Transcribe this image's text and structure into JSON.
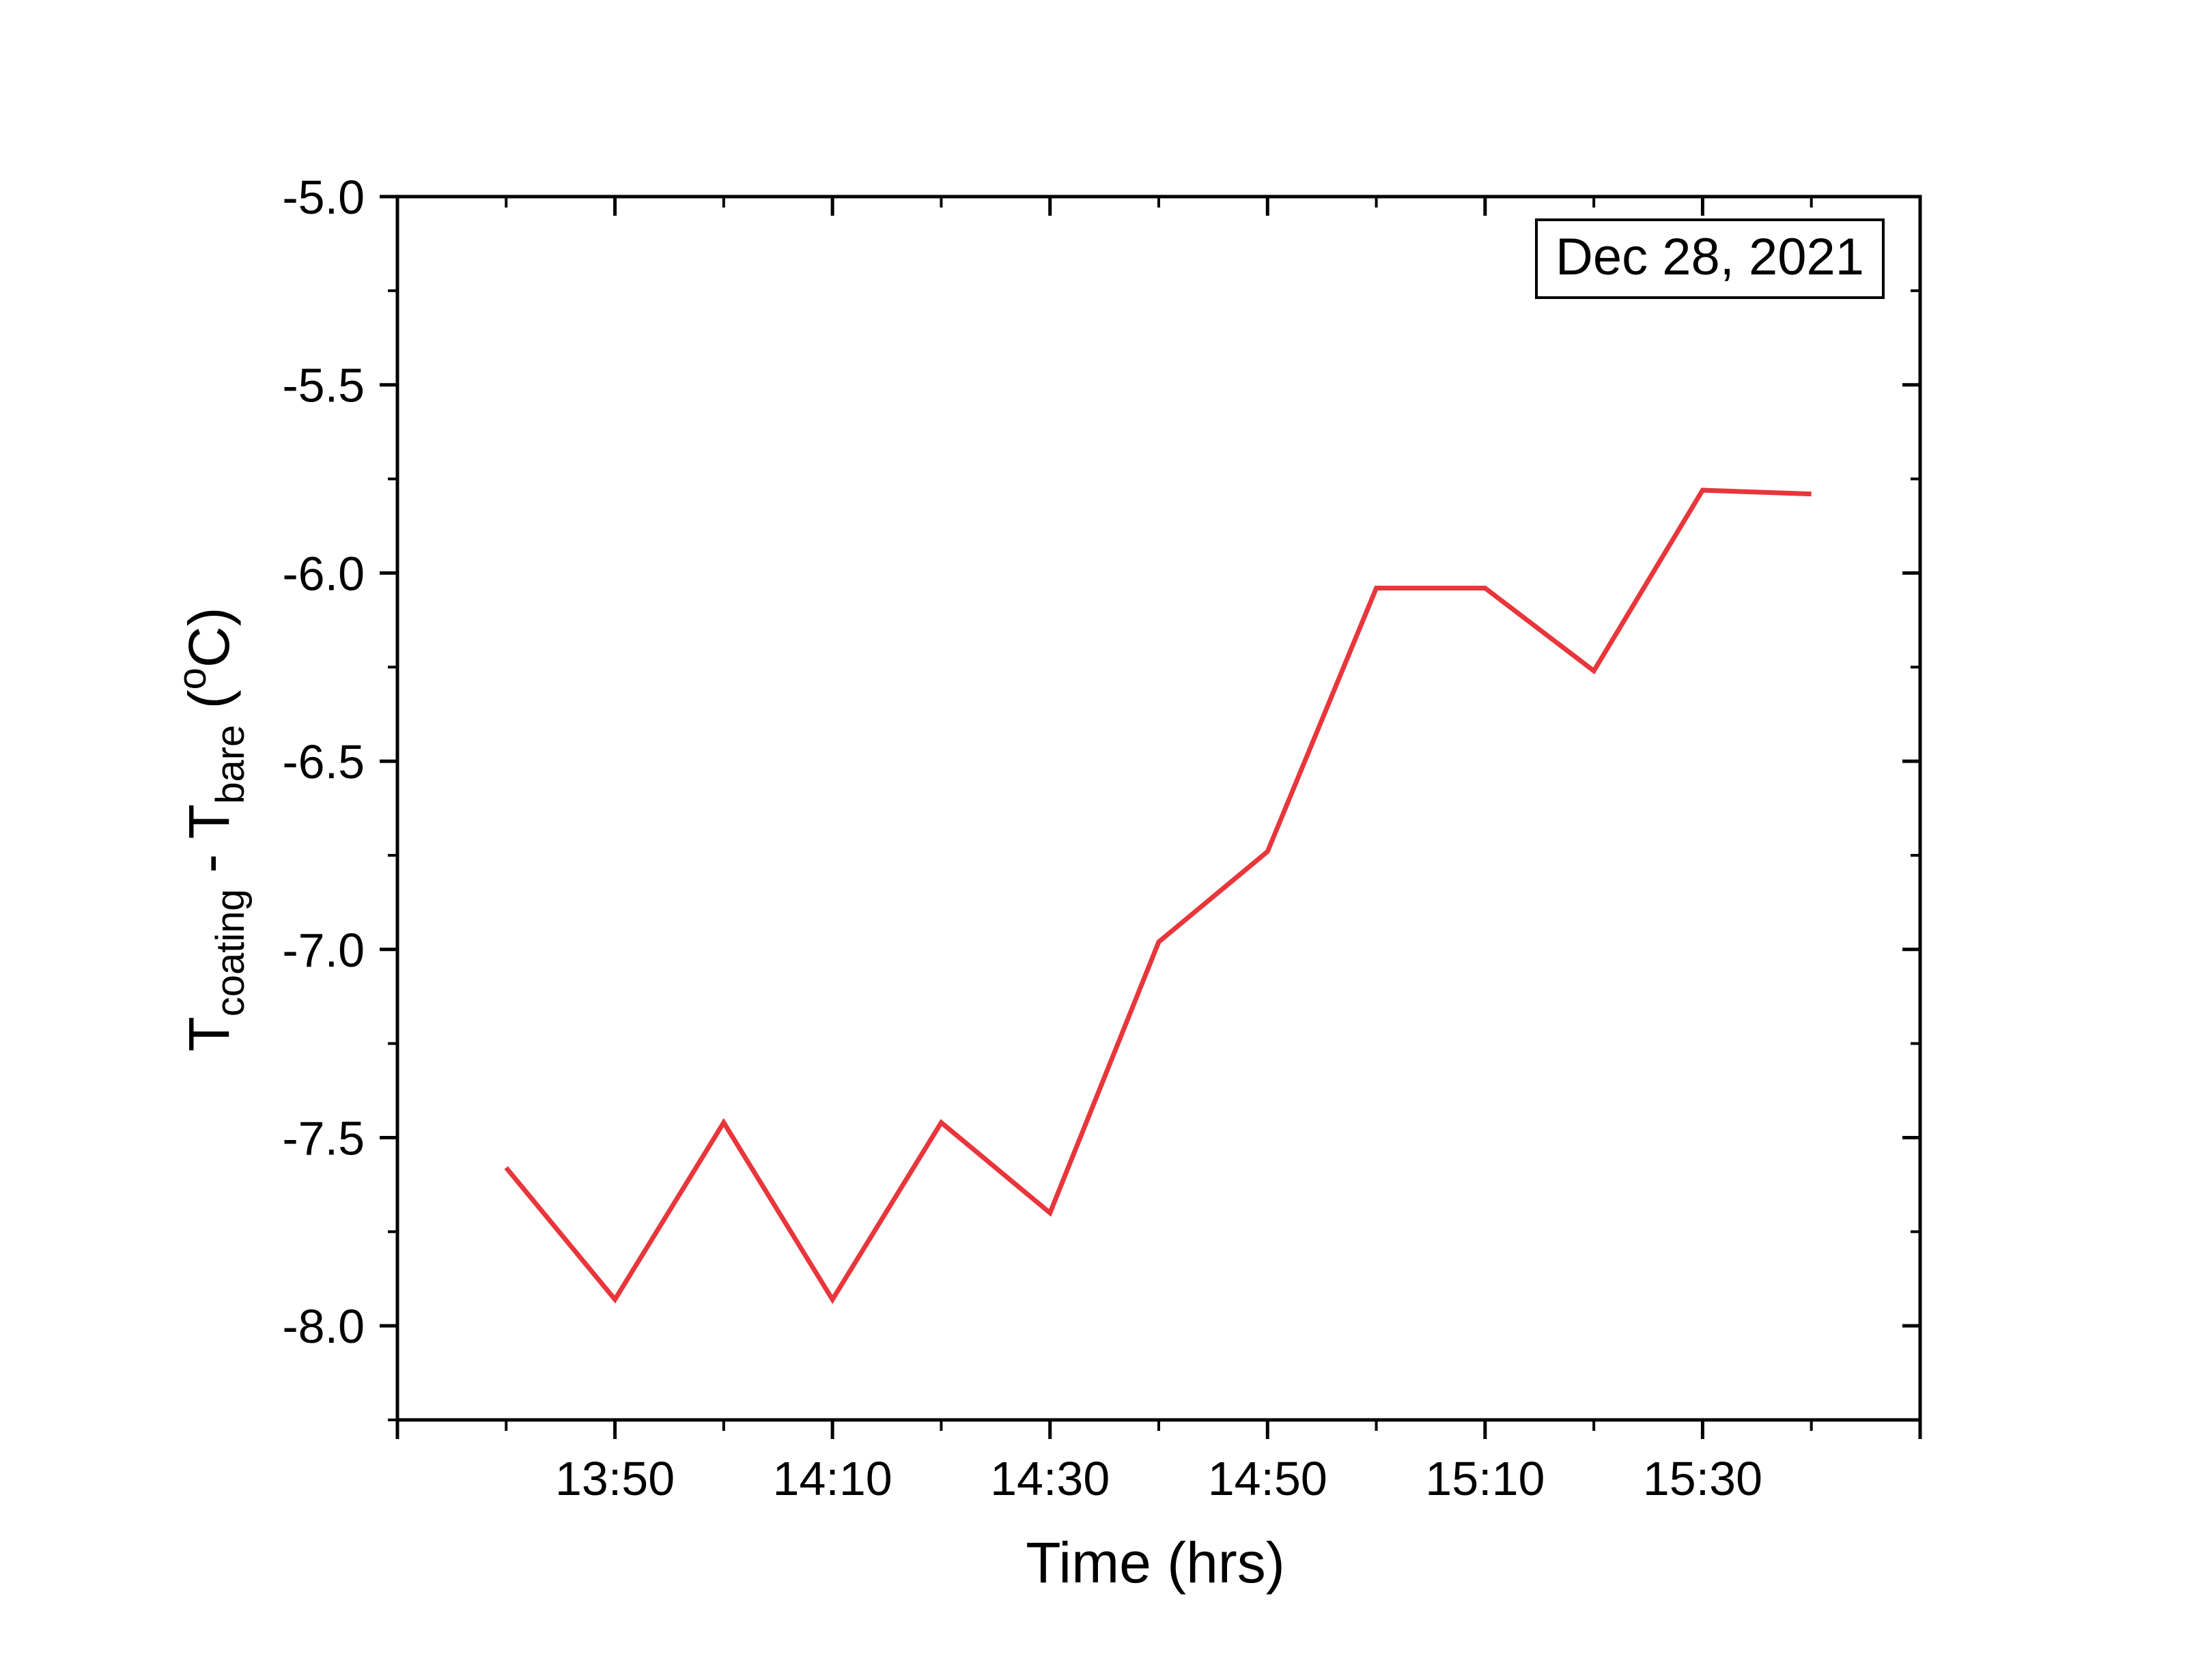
{
  "chart_data": {
    "type": "line",
    "xlabel": "Time (hrs)",
    "ylabel": {
      "main": "T",
      "sub1": "coating",
      "sep": " - T",
      "sub2": "bare",
      "unit_open": " (",
      "sup": "o",
      "unit_close": "C)"
    },
    "annotation": "Dec 28, 2021",
    "ylim": [
      -8.25,
      -5.0
    ],
    "xlim": [
      "13:30",
      "15:50"
    ],
    "y_ticks": [
      -5.0,
      -5.5,
      -6.0,
      -6.5,
      -7.0,
      -7.5,
      -8.0
    ],
    "y_tick_labels": [
      "-5.0",
      "-5.5",
      "-6.0",
      "-6.5",
      "-7.0",
      "-7.5",
      "-8.0"
    ],
    "x_ticks": [
      "13:50",
      "14:10",
      "14:30",
      "14:50",
      "15:10",
      "15:30"
    ],
    "grid": false,
    "series": [
      {
        "color": "#e8363b",
        "x": [
          "13:40",
          "13:50",
          "14:00",
          "14:10",
          "14:20",
          "14:30",
          "14:40",
          "14:50",
          "15:00",
          "15:10",
          "15:20",
          "15:30",
          "15:40"
        ],
        "values": [
          -7.58,
          -7.93,
          -7.46,
          -7.93,
          -7.46,
          -7.7,
          -6.98,
          -6.74,
          -6.04,
          -6.04,
          -6.26,
          -5.78,
          -5.79
        ]
      }
    ]
  }
}
